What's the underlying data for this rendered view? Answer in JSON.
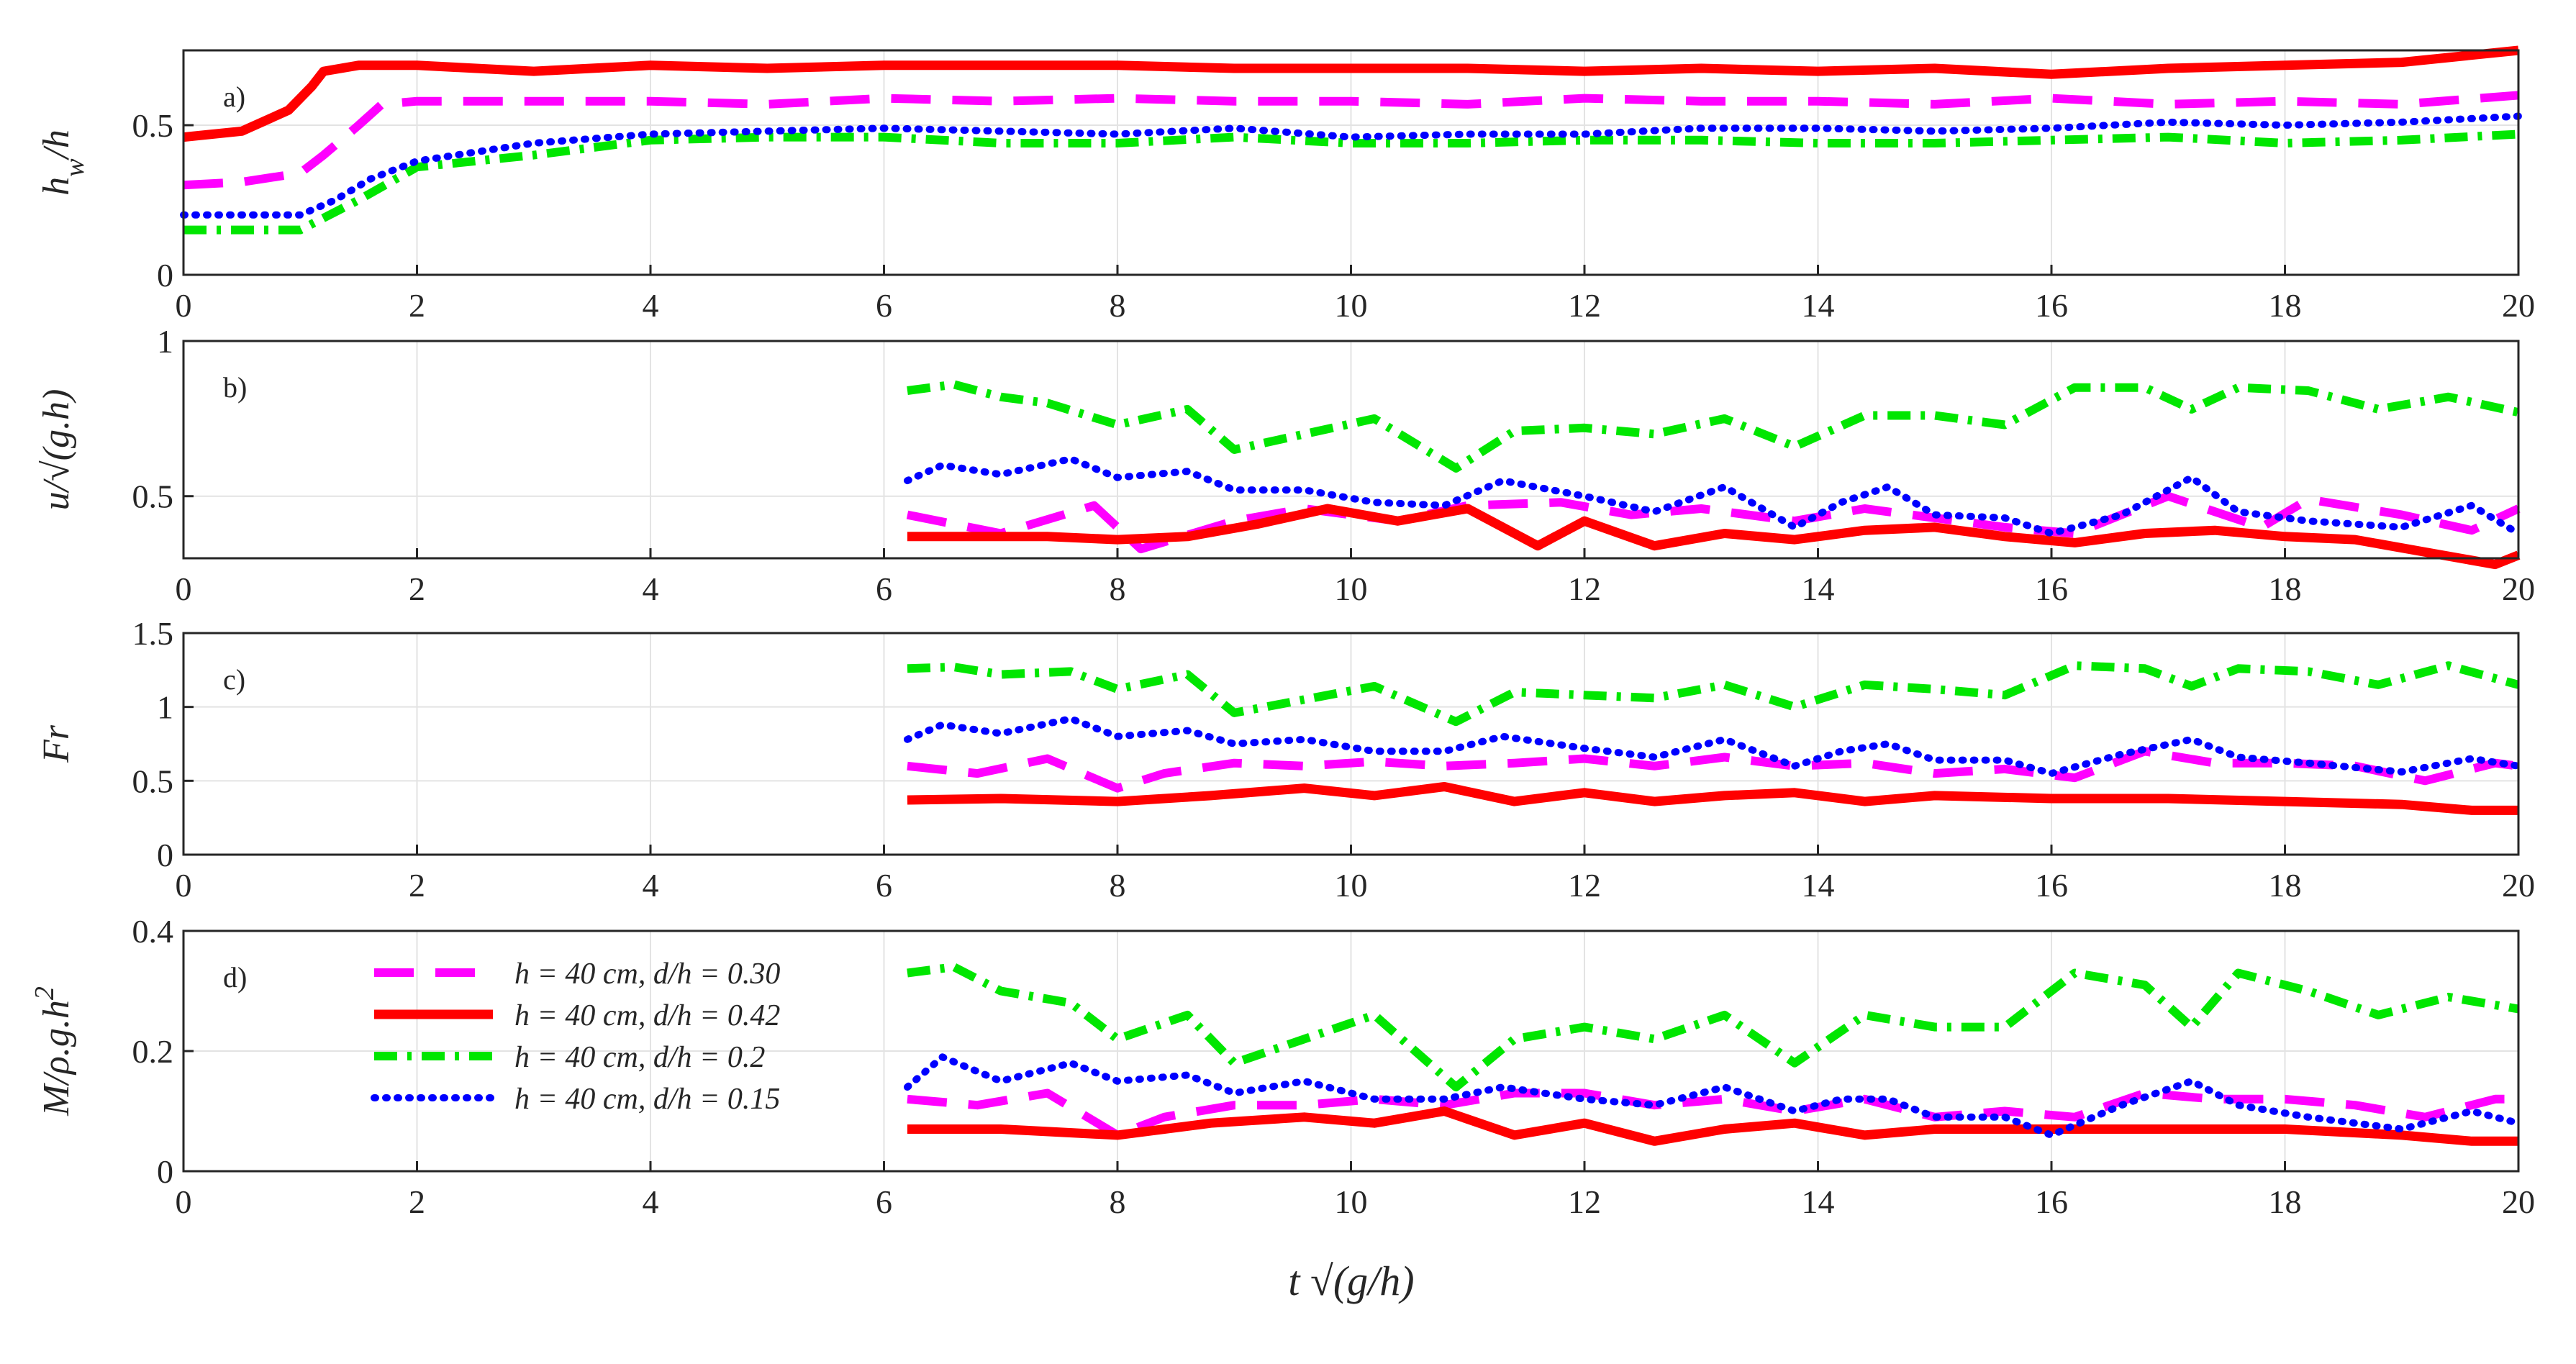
{
  "chart_data": [
    {
      "type": "line",
      "panel_label": "a)",
      "ylabel": "h_w/h",
      "ylabel_parts": {
        "main": "h",
        "sub": "w",
        "rest": "/h"
      },
      "xlim": [
        0,
        20
      ],
      "ylim": [
        0,
        0.75
      ],
      "xticks": [
        "0",
        "2",
        "4",
        "6",
        "8",
        "10",
        "12",
        "14",
        "16",
        "18",
        "20"
      ],
      "yticks": [
        {
          "v": 0,
          "label": "0"
        },
        {
          "v": 0.5,
          "label": "0.5"
        }
      ],
      "grid": true,
      "series": [
        {
          "name": "h = 40 cm, d/h = 0.30",
          "x": [
            0,
            0.5,
            1,
            1.2,
            1.5,
            1.7,
            2,
            3,
            4,
            5,
            6,
            7,
            8,
            9,
            10,
            11,
            12,
            13,
            14,
            15,
            16,
            17,
            18,
            19,
            20
          ],
          "y": [
            0.3,
            0.31,
            0.34,
            0.4,
            0.5,
            0.57,
            0.58,
            0.58,
            0.58,
            0.57,
            0.59,
            0.58,
            0.59,
            0.58,
            0.58,
            0.57,
            0.59,
            0.58,
            0.58,
            0.57,
            0.59,
            0.57,
            0.58,
            0.57,
            0.6
          ]
        },
        {
          "name": "h = 40 cm, d/h = 0.42",
          "x": [
            0,
            0.5,
            0.9,
            1.1,
            1.2,
            1.5,
            2,
            3,
            4,
            5,
            6,
            7,
            8,
            9,
            10,
            11,
            12,
            13,
            14,
            15,
            16,
            17,
            18,
            19,
            20
          ],
          "y": [
            0.46,
            0.48,
            0.55,
            0.63,
            0.68,
            0.7,
            0.7,
            0.68,
            0.7,
            0.69,
            0.7,
            0.7,
            0.7,
            0.69,
            0.69,
            0.69,
            0.68,
            0.69,
            0.68,
            0.69,
            0.67,
            0.69,
            0.7,
            0.71,
            0.75
          ]
        },
        {
          "name": "h = 40 cm, d/h = 0.2",
          "x": [
            0,
            0.5,
            1,
            1.5,
            2,
            3,
            4,
            5,
            6,
            7,
            8,
            9,
            10,
            11,
            12,
            13,
            14,
            15,
            16,
            17,
            18,
            19,
            20
          ],
          "y": [
            0.15,
            0.15,
            0.15,
            0.25,
            0.36,
            0.4,
            0.45,
            0.46,
            0.46,
            0.44,
            0.44,
            0.46,
            0.44,
            0.44,
            0.45,
            0.45,
            0.44,
            0.44,
            0.45,
            0.46,
            0.44,
            0.45,
            0.47
          ]
        },
        {
          "name": "h = 40 cm, d/h = 0.15",
          "x": [
            0,
            0.5,
            1,
            1.3,
            1.6,
            2,
            3,
            4,
            5,
            6,
            7,
            8,
            9,
            10,
            11,
            12,
            13,
            14,
            15,
            16,
            17,
            18,
            19,
            20
          ],
          "y": [
            0.2,
            0.2,
            0.2,
            0.25,
            0.32,
            0.38,
            0.44,
            0.47,
            0.48,
            0.49,
            0.48,
            0.47,
            0.49,
            0.46,
            0.47,
            0.47,
            0.49,
            0.49,
            0.48,
            0.49,
            0.51,
            0.5,
            0.51,
            0.53
          ]
        }
      ]
    },
    {
      "type": "line",
      "panel_label": "b)",
      "ylabel": "u/√(g.h)",
      "ylabel_parts": {
        "main": "u",
        "rest": "/√(g.h)"
      },
      "xlim": [
        0,
        20
      ],
      "ylim": [
        0.3,
        1.0
      ],
      "xticks": [
        "0",
        "2",
        "4",
        "6",
        "8",
        "10",
        "12",
        "14",
        "16",
        "18",
        "20"
      ],
      "yticks": [
        {
          "v": 0.5,
          "label": "0.5"
        },
        {
          "v": 1.0,
          "label": "1"
        }
      ],
      "grid": true,
      "series": [
        {
          "name": "h = 40 cm, d/h = 0.30",
          "x": [
            6.2,
            7,
            7.8,
            8.2,
            9,
            9.6,
            10.4,
            11,
            11.8,
            12.4,
            13,
            13.8,
            14.4,
            15,
            15.6,
            16.2,
            17,
            17.8,
            18.2,
            19,
            19.6,
            20
          ],
          "y": [
            0.44,
            0.38,
            0.47,
            0.33,
            0.42,
            0.46,
            0.42,
            0.47,
            0.48,
            0.44,
            0.46,
            0.42,
            0.46,
            0.43,
            0.4,
            0.38,
            0.5,
            0.4,
            0.49,
            0.44,
            0.39,
            0.46
          ]
        },
        {
          "name": "h = 40 cm, d/h = 0.42",
          "x": [
            6.2,
            6.8,
            7.4,
            8,
            8.6,
            9.2,
            9.8,
            10.4,
            11,
            11.6,
            12,
            12.6,
            13.2,
            13.8,
            14.4,
            15,
            15.6,
            16.2,
            16.8,
            17.4,
            18,
            18.6,
            19.2,
            19.8,
            20
          ],
          "y": [
            0.37,
            0.37,
            0.37,
            0.36,
            0.37,
            0.41,
            0.46,
            0.42,
            0.46,
            0.34,
            0.42,
            0.34,
            0.38,
            0.36,
            0.39,
            0.4,
            0.37,
            0.35,
            0.38,
            0.39,
            0.37,
            0.36,
            0.32,
            0.28,
            0.31
          ]
        },
        {
          "name": "h = 40 cm, d/h = 0.2",
          "x": [
            6.2,
            6.6,
            7,
            7.4,
            8,
            8.6,
            9,
            9.6,
            10.2,
            10.9,
            11.4,
            12,
            12.6,
            13.2,
            13.8,
            14.4,
            15,
            15.6,
            16.2,
            16.8,
            17.2,
            17.6,
            18.2,
            18.8,
            19.4,
            20
          ],
          "y": [
            0.84,
            0.86,
            0.82,
            0.8,
            0.73,
            0.78,
            0.65,
            0.7,
            0.75,
            0.59,
            0.71,
            0.72,
            0.7,
            0.75,
            0.66,
            0.76,
            0.76,
            0.73,
            0.85,
            0.85,
            0.78,
            0.85,
            0.84,
            0.78,
            0.82,
            0.77
          ]
        },
        {
          "name": "h = 40 cm, d/h = 0.15",
          "x": [
            6.2,
            6.5,
            7,
            7.6,
            8,
            8.6,
            9,
            9.6,
            10.2,
            10.8,
            11.3,
            12,
            12.6,
            13.2,
            13.8,
            14.2,
            14.6,
            15,
            15.6,
            16,
            16.6,
            17.2,
            17.6,
            18.2,
            19,
            19.6,
            20
          ],
          "y": [
            0.55,
            0.6,
            0.57,
            0.62,
            0.56,
            0.58,
            0.52,
            0.52,
            0.48,
            0.47,
            0.55,
            0.5,
            0.45,
            0.53,
            0.4,
            0.48,
            0.53,
            0.44,
            0.43,
            0.38,
            0.44,
            0.56,
            0.45,
            0.42,
            0.4,
            0.47,
            0.38
          ]
        }
      ]
    },
    {
      "type": "line",
      "panel_label": "c)",
      "ylabel": "Fr",
      "xlim": [
        0,
        20
      ],
      "ylim": [
        0,
        1.5
      ],
      "xticks": [
        "0",
        "2",
        "4",
        "6",
        "8",
        "10",
        "12",
        "14",
        "16",
        "18",
        "20"
      ],
      "yticks": [
        {
          "v": 0,
          "label": "0"
        },
        {
          "v": 0.5,
          "label": "0.5"
        },
        {
          "v": 1.0,
          "label": "1"
        },
        {
          "v": 1.5,
          "label": "1.5"
        }
      ],
      "grid": true,
      "series": [
        {
          "name": "h = 40 cm, d/h = 0.30",
          "x": [
            6.2,
            6.8,
            7.4,
            8,
            8.4,
            9,
            9.6,
            10.2,
            10.8,
            11.4,
            12,
            12.6,
            13.2,
            13.8,
            14.4,
            15,
            15.6,
            16.2,
            16.8,
            17.4,
            18,
            18.6,
            19.2,
            19.8,
            20
          ],
          "y": [
            0.6,
            0.55,
            0.65,
            0.45,
            0.55,
            0.62,
            0.6,
            0.63,
            0.6,
            0.62,
            0.65,
            0.6,
            0.66,
            0.6,
            0.62,
            0.55,
            0.58,
            0.52,
            0.7,
            0.62,
            0.62,
            0.6,
            0.5,
            0.62,
            0.6
          ]
        },
        {
          "name": "h = 40 cm, d/h = 0.42",
          "x": [
            6.2,
            7,
            8,
            8.8,
            9.6,
            10.2,
            10.8,
            11.4,
            12,
            12.6,
            13.2,
            13.8,
            14.4,
            15,
            16,
            17,
            18,
            19,
            19.6,
            20
          ],
          "y": [
            0.37,
            0.38,
            0.36,
            0.4,
            0.45,
            0.4,
            0.46,
            0.36,
            0.42,
            0.36,
            0.4,
            0.42,
            0.36,
            0.4,
            0.38,
            0.38,
            0.36,
            0.34,
            0.3,
            0.3
          ]
        },
        {
          "name": "h = 40 cm, d/h = 0.2",
          "x": [
            6.2,
            6.6,
            7,
            7.6,
            8,
            8.6,
            9,
            9.6,
            10.2,
            10.9,
            11.4,
            12,
            12.6,
            13.2,
            13.8,
            14.4,
            15,
            15.6,
            16.2,
            16.8,
            17.2,
            17.6,
            18.2,
            18.8,
            19.4,
            20
          ],
          "y": [
            1.26,
            1.27,
            1.22,
            1.24,
            1.12,
            1.22,
            0.96,
            1.05,
            1.14,
            0.9,
            1.1,
            1.08,
            1.06,
            1.15,
            1.0,
            1.15,
            1.12,
            1.08,
            1.28,
            1.26,
            1.14,
            1.26,
            1.24,
            1.15,
            1.28,
            1.15
          ]
        },
        {
          "name": "h = 40 cm, d/h = 0.15",
          "x": [
            6.2,
            6.5,
            7,
            7.6,
            8,
            8.6,
            9,
            9.6,
            10.2,
            10.8,
            11.3,
            12,
            12.6,
            13.2,
            13.8,
            14.2,
            14.6,
            15,
            15.6,
            16,
            16.6,
            17.2,
            17.6,
            18.2,
            19,
            19.6,
            20
          ],
          "y": [
            0.78,
            0.88,
            0.82,
            0.92,
            0.8,
            0.84,
            0.75,
            0.78,
            0.7,
            0.7,
            0.8,
            0.72,
            0.66,
            0.78,
            0.6,
            0.7,
            0.75,
            0.64,
            0.64,
            0.55,
            0.68,
            0.78,
            0.66,
            0.62,
            0.56,
            0.65,
            0.6
          ]
        }
      ]
    },
    {
      "type": "line",
      "panel_label": "d)",
      "ylabel": "M/ρ.g.h²",
      "ylabel_parts": {
        "main": "M/ρ.g.h",
        "sup": "2"
      },
      "xlim": [
        0,
        20
      ],
      "ylim": [
        0,
        0.4
      ],
      "xticks": [
        "0",
        "2",
        "4",
        "6",
        "8",
        "10",
        "12",
        "14",
        "16",
        "18",
        "20"
      ],
      "yticks": [
        {
          "v": 0,
          "label": "0"
        },
        {
          "v": 0.2,
          "label": "0.2"
        },
        {
          "v": 0.4,
          "label": "0.4"
        }
      ],
      "grid": true,
      "series": [
        {
          "name": "h = 40 cm, d/h = 0.30",
          "x": [
            6.2,
            6.8,
            7.4,
            8,
            8.4,
            9,
            9.6,
            10.2,
            10.8,
            11.4,
            12,
            12.6,
            13.2,
            13.8,
            14.4,
            15,
            15.6,
            16.2,
            16.8,
            17.4,
            18,
            18.6,
            19.2,
            19.8,
            20
          ],
          "y": [
            0.12,
            0.11,
            0.13,
            0.06,
            0.09,
            0.11,
            0.11,
            0.12,
            0.11,
            0.13,
            0.13,
            0.11,
            0.12,
            0.1,
            0.12,
            0.09,
            0.1,
            0.09,
            0.13,
            0.12,
            0.12,
            0.11,
            0.09,
            0.12,
            0.12
          ]
        },
        {
          "name": "h = 40 cm, d/h = 0.42",
          "x": [
            6.2,
            7,
            8,
            8.8,
            9.6,
            10.2,
            10.8,
            11.4,
            12,
            12.6,
            13.2,
            13.8,
            14.4,
            15,
            16,
            17,
            18,
            19,
            19.6,
            20
          ],
          "y": [
            0.07,
            0.07,
            0.06,
            0.08,
            0.09,
            0.08,
            0.1,
            0.06,
            0.08,
            0.05,
            0.07,
            0.08,
            0.06,
            0.07,
            0.07,
            0.07,
            0.07,
            0.06,
            0.05,
            0.05
          ]
        },
        {
          "name": "h = 40 cm, d/h = 0.2",
          "x": [
            6.2,
            6.6,
            7,
            7.6,
            8,
            8.6,
            9,
            9.6,
            10.2,
            10.9,
            11.4,
            12,
            12.6,
            13.2,
            13.8,
            14.4,
            15,
            15.6,
            16.2,
            16.8,
            17.2,
            17.6,
            18.2,
            18.8,
            19.4,
            20
          ],
          "y": [
            0.33,
            0.34,
            0.3,
            0.28,
            0.22,
            0.26,
            0.18,
            0.22,
            0.26,
            0.14,
            0.22,
            0.24,
            0.22,
            0.26,
            0.18,
            0.26,
            0.24,
            0.24,
            0.33,
            0.31,
            0.24,
            0.33,
            0.3,
            0.26,
            0.29,
            0.27
          ]
        },
        {
          "name": "h = 40 cm, d/h = 0.15",
          "x": [
            6.2,
            6.5,
            7,
            7.6,
            8,
            8.6,
            9,
            9.6,
            10.2,
            10.8,
            11.3,
            12,
            12.6,
            13.2,
            13.8,
            14.2,
            14.6,
            15,
            15.6,
            16,
            16.6,
            17.2,
            17.6,
            18.2,
            19,
            19.6,
            20
          ],
          "y": [
            0.14,
            0.19,
            0.15,
            0.18,
            0.15,
            0.16,
            0.13,
            0.15,
            0.12,
            0.12,
            0.14,
            0.12,
            0.11,
            0.14,
            0.1,
            0.12,
            0.12,
            0.09,
            0.09,
            0.06,
            0.11,
            0.15,
            0.11,
            0.09,
            0.07,
            0.1,
            0.08
          ]
        }
      ]
    }
  ],
  "legend": {
    "placement": "inside panel d, upper-left",
    "entries": [
      "h = 40 cm, d/h = 0.30",
      "h = 40 cm, d/h = 0.42",
      "h = 40 cm, d/h = 0.2",
      "h = 40 cm, d/h = 0.15"
    ]
  },
  "xlabel": "t √(g/h)",
  "series_colors": [
    "#ff00ff",
    "#ff0000",
    "#00e600",
    "#0000ff"
  ]
}
